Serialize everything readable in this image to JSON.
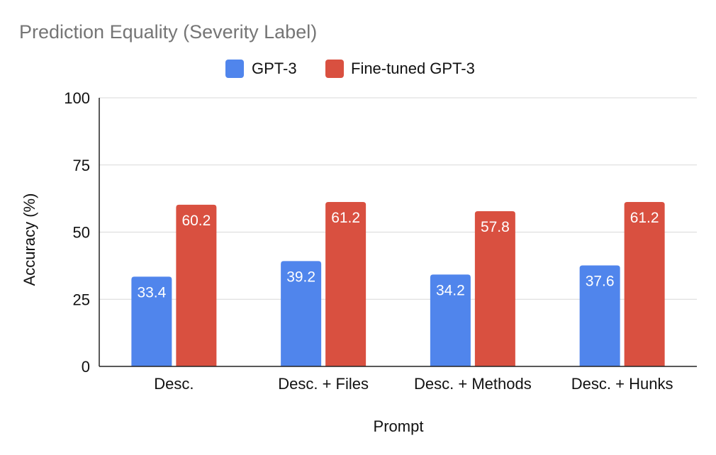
{
  "chart_data": {
    "type": "bar",
    "title": "Prediction Equality (Severity Label)",
    "xlabel": "Prompt",
    "ylabel": "Accuracy (%)",
    "categories": [
      "Desc.",
      "Desc. + Files",
      "Desc. + Methods",
      "Desc. + Hunks"
    ],
    "series": [
      {
        "name": "GPT-3",
        "values": [
          33.4,
          39.2,
          34.2,
          37.6
        ],
        "color": "#5085ec"
      },
      {
        "name": "Fine-tuned GPT-3",
        "values": [
          60.2,
          61.2,
          57.8,
          61.2
        ],
        "color": "#d95040"
      }
    ],
    "ylim": [
      0,
      100
    ],
    "yticks": [
      0,
      25,
      50,
      75,
      100
    ],
    "grid": true,
    "legend_position": "top-center",
    "data_labels": true
  }
}
